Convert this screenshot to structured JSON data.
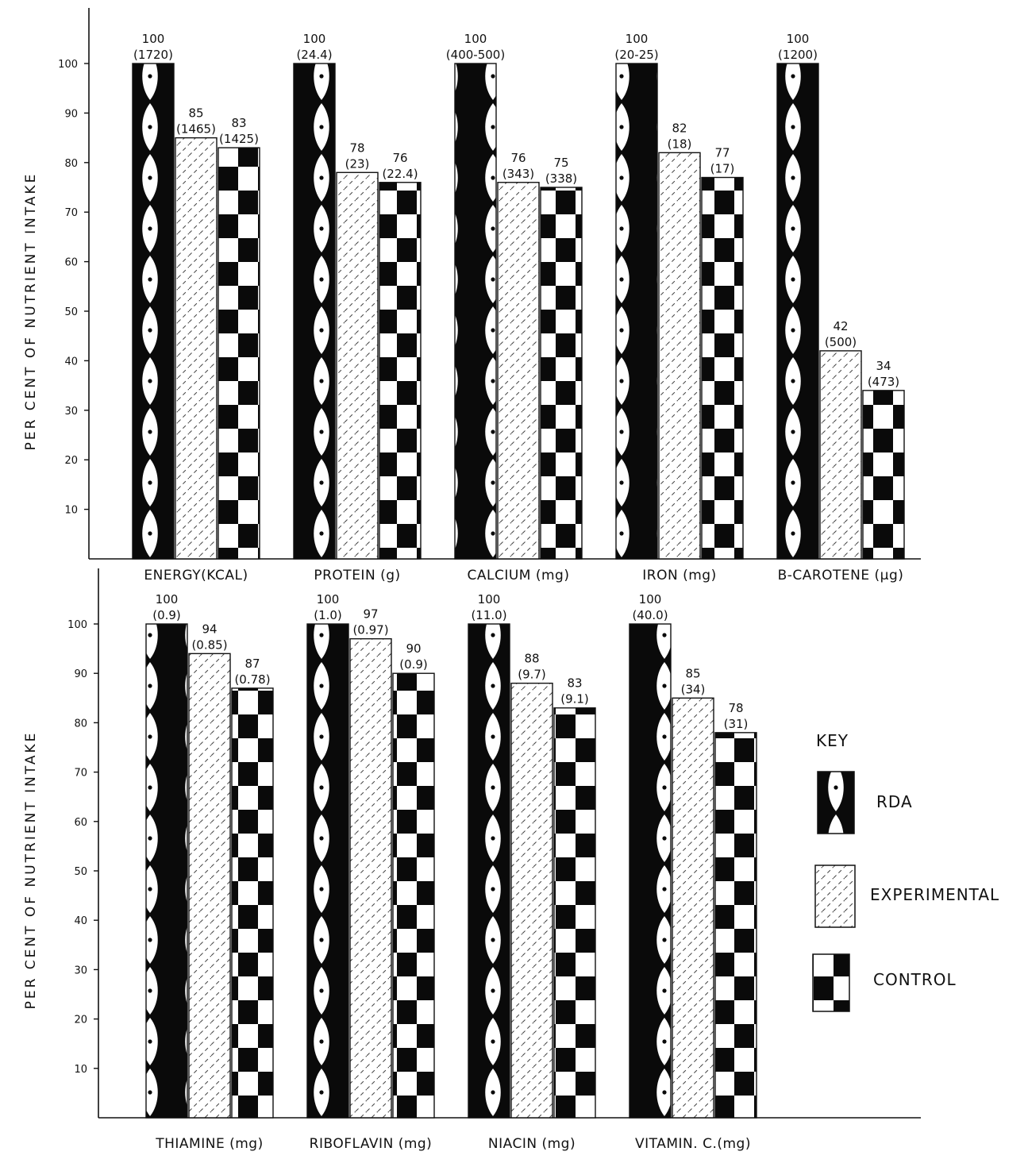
{
  "key": {
    "title": "KEY",
    "items": [
      {
        "label": "RDA",
        "pattern": "rda"
      },
      {
        "label": "EXPERIMENTAL",
        "pattern": "experimental"
      },
      {
        "label": "CONTROL",
        "pattern": "control"
      }
    ]
  },
  "chart_data": [
    {
      "type": "bar",
      "ylabel": "PER CENT   OF   NUTRIENT   INTAKE",
      "ylim": [
        0,
        100
      ],
      "yticks": [
        "10",
        "20",
        "30",
        "40",
        "50",
        "60",
        "70",
        "80",
        "90",
        "100"
      ],
      "categories": [
        "ENERGY(KCAL)",
        "PROTEIN (g)",
        "CALCIUM (mg)",
        "IRON (mg)",
        "B-CAROTENE (µg)"
      ],
      "series": [
        {
          "name": "RDA",
          "values": [
            100,
            100,
            100,
            100,
            100
          ],
          "value_labels": [
            "100",
            "100",
            "100",
            "100",
            "100"
          ],
          "sub_labels": [
            "(1720)",
            "(24.4)",
            "(400-500)",
            "(20-25)",
            "(1200)"
          ]
        },
        {
          "name": "EXPERIMENTAL",
          "values": [
            85,
            78,
            76,
            82,
            42
          ],
          "value_labels": [
            "85",
            "78",
            "76",
            "82",
            "42"
          ],
          "sub_labels": [
            "(1465)",
            "(23)",
            "(343)",
            "(18)",
            "(500)"
          ]
        },
        {
          "name": "CONTROL",
          "values": [
            83,
            76,
            75,
            77,
            34
          ],
          "value_labels": [
            "83",
            "76",
            "75",
            "77",
            "34"
          ],
          "sub_labels": [
            "(1425)",
            "(22.4)",
            "(338)",
            "(17)",
            "(473)"
          ]
        }
      ]
    },
    {
      "type": "bar",
      "ylabel": "PER CENT   OF   NUTRIENT   INTAKE",
      "ylim": [
        0,
        100
      ],
      "yticks": [
        "10",
        "20",
        "30",
        "40",
        "50",
        "60",
        "70",
        "80",
        "90",
        "100"
      ],
      "categories": [
        "THIAMINE (mg)",
        "RIBOFLAVIN (mg)",
        "NIACIN (mg)",
        "VITAMIN. C.(mg)"
      ],
      "series": [
        {
          "name": "RDA",
          "values": [
            100,
            100,
            100,
            100
          ],
          "value_labels": [
            "100",
            "100",
            "100",
            "100"
          ],
          "sub_labels": [
            "(0.9)",
            "(1.0)",
            "(11.0)",
            "(40.0)"
          ]
        },
        {
          "name": "EXPERIMENTAL",
          "values": [
            94,
            97,
            88,
            85
          ],
          "value_labels": [
            "94",
            "97",
            "88",
            "85"
          ],
          "sub_labels": [
            "(0.85)",
            "(0.97)",
            "(9.7)",
            "(34)"
          ]
        },
        {
          "name": "CONTROL",
          "values": [
            87,
            90,
            83,
            78
          ],
          "value_labels": [
            "87",
            "90",
            "83",
            "78"
          ],
          "sub_labels": [
            "(0.78)",
            "(0.9)",
            "(9.1)",
            "(31)"
          ]
        }
      ]
    }
  ]
}
